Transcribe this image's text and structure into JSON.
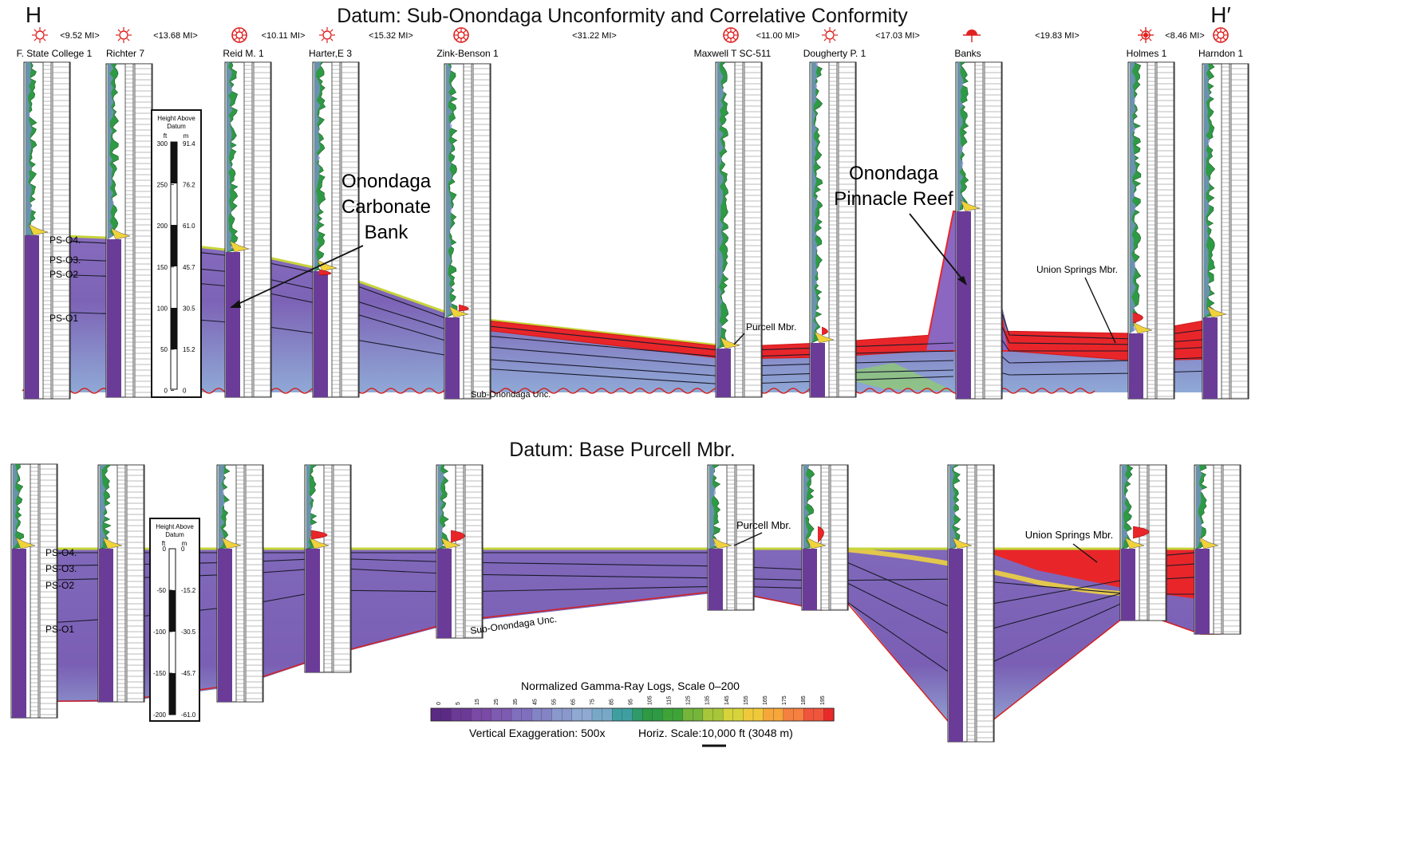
{
  "section_top": {
    "title": "Datum: Sub-Onondaga Unconformity and Correlative Conformity",
    "end_left": "H",
    "end_right": "H′",
    "distances": [
      "<9.52 MI>",
      "<13.68 MI>",
      "<10.11 MI>",
      "<15.32 MI>",
      "<31.22 MI>",
      "<11.00 MI>",
      "<17.03 MI>",
      "<19.83 MI>",
      "<8.46 MI>"
    ],
    "annotations": {
      "bank": [
        "Onondaga",
        "Carbonate",
        "Bank"
      ],
      "reef": [
        "Onondaga",
        "Pinnacle Reef"
      ],
      "union_springs": "Union Springs Mbr.",
      "purcell": "Purcell Mbr.",
      "unconformity": "Sub-Onondaga Unc."
    },
    "scale_box": {
      "title": [
        "Height Above",
        "Datum"
      ],
      "unit_ft": "ft",
      "unit_m": "m",
      "ft_ticks": [
        "300",
        "250",
        "200",
        "150",
        "100",
        "50",
        "0"
      ],
      "m_ticks": [
        "91.4",
        "76.2",
        "61.0",
        "45.7",
        "30.5",
        "15.2",
        "0"
      ]
    }
  },
  "section_bottom": {
    "title": "Datum: Base Purcell Mbr.",
    "annotations": {
      "union_springs": "Union Springs Mbr.",
      "purcell": "Purcell Mbr.",
      "unconformity": "Sub-Onondaga Unc."
    },
    "scale_box": {
      "title": [
        "Height Above",
        "Datum"
      ],
      "unit_ft": "ft",
      "unit_m": "m",
      "ft_ticks": [
        "0",
        "-50",
        "-100",
        "-150",
        "-200"
      ],
      "m_ticks": [
        "0",
        "-15.2",
        "-30.5",
        "-45.7",
        "-61.0"
      ]
    }
  },
  "wells": [
    "F. State College 1",
    "Richter 7",
    "Reid M. 1",
    "Harter,E 3",
    "Zink-Benson 1",
    "Maxwell T SC-511",
    "Dougherty P. 1",
    "Banks",
    "Holmes 1",
    "Harndon 1"
  ],
  "well_symbols": [
    "gas",
    "gas",
    "dry",
    "gas",
    "dry",
    "dry",
    "gas",
    "oil",
    "oil-gas",
    "dry"
  ],
  "surfaces": {
    "top": [
      "PS-O4.",
      "PS-O3.",
      "PS-O2",
      "PS-O1"
    ],
    "bottom": [
      "PS-O4.",
      "PS-O3.",
      "PS-O2",
      "PS-O1"
    ]
  },
  "colorbar": {
    "title": "Normalized Gamma-Ray Logs, Scale 0–200",
    "ticks": [
      "0",
      "5",
      "15",
      "25",
      "35",
      "45",
      "55",
      "65",
      "75",
      "85",
      "95",
      "105",
      "115",
      "125",
      "135",
      "145",
      "155",
      "165",
      "175",
      "185",
      "195"
    ],
    "colors": [
      "#5a2a84",
      "#6b3a96",
      "#7a4aa6",
      "#7d5bb2",
      "#7f6fbe",
      "#8383c6",
      "#8a98cc",
      "#8ea9d2",
      "#78a8c8",
      "#3f9fa0",
      "#2f9a6a",
      "#2e9a44",
      "#3fa438",
      "#74b53a",
      "#a7c63a",
      "#d6d43a",
      "#f0c93a",
      "#f6a63a",
      "#f58040",
      "#f0553c",
      "#ea2a2a"
    ]
  },
  "footer": {
    "vertical_exaggeration": "Vertical Exaggeration: 500x",
    "horiz_scale": "Horiz. Scale:10,000 ft (3048 m)"
  }
}
